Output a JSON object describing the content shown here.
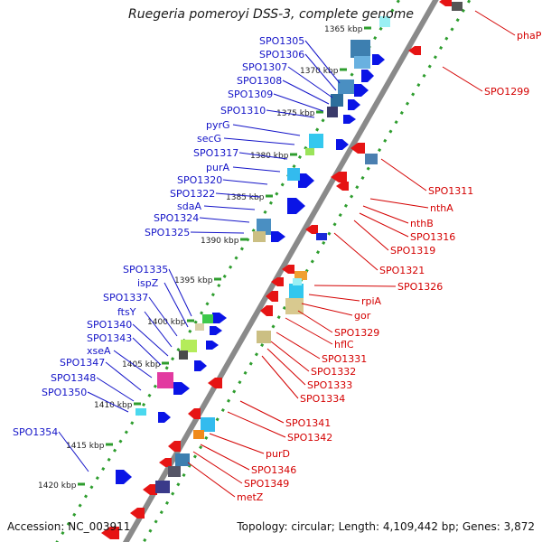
{
  "title": "Ruegeria pomeroyi DSS-3, complete genome",
  "accession": "Accession: NC_003911",
  "topology": "Topology: circular; Length: 4,109,442 bp; Genes: 3,872",
  "colors": {
    "backbone": "#8a8a8a",
    "ruler_dots": "#2e9d2e",
    "forward_label": "#1414c8",
    "reverse_label": "#d40000",
    "forward_arrow": "#0a14e6",
    "reverse_arrow": "#e61414"
  },
  "kbp_ticks": [
    "1365 kbp",
    "1370 kbp",
    "1375 kbp",
    "1380 kbp",
    "1385 kbp",
    "1390 kbp",
    "1395 kbp",
    "1400 kbp",
    "1405 kbp",
    "1410 kbp",
    "1415 kbp",
    "1420 kbp"
  ],
  "forward_labels": [
    "SPO1305",
    "SPO1306",
    "SPO1307",
    "SPO1308",
    "SPO1309",
    "SPO1310",
    "pyrG",
    "secG",
    "SPO1317",
    "purA",
    "SPO1320",
    "SPO1322",
    "sdaA",
    "SPO1324",
    "SPO1325",
    "SPO1335",
    "ispZ",
    "SPO1337",
    "ftsY",
    "SPO1340",
    "SPO1343",
    "xseA",
    "SPO1347",
    "SPO1348",
    "SPO1350",
    "SPO1354"
  ],
  "reverse_labels": [
    "phaP",
    "SPO1299",
    "SPO1311",
    "nthA",
    "nthB",
    "SPO1316",
    "SPO1319",
    "SPO1321",
    "SPO1326",
    "rpiA",
    "gor",
    "SPO1329",
    "hflC",
    "SPO1331",
    "SPO1332",
    "SPO1333",
    "SPO1334",
    "SPO1341",
    "SPO1342",
    "purD",
    "SPO1346",
    "SPO1349",
    "metZ"
  ]
}
